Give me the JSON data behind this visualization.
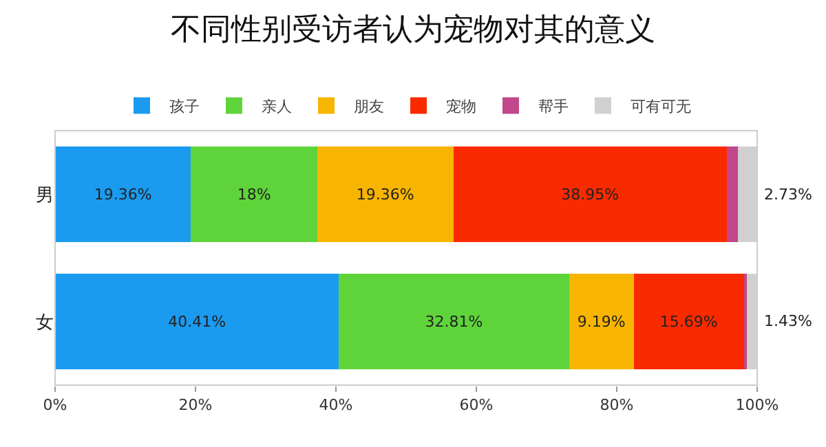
{
  "chart_data": {
    "type": "bar",
    "title": "不同性别受访者认为宠物对其的意义",
    "orientation": "horizontal",
    "stacked": true,
    "categories": [
      "男",
      "女"
    ],
    "series": [
      {
        "name": "孩子",
        "color": "#1a9bf0",
        "values": [
          19.36,
          40.41
        ],
        "value_labels": [
          "19.36%",
          "40.41%"
        ]
      },
      {
        "name": "亲人",
        "color": "#5fd43a",
        "values": [
          18,
          32.81
        ],
        "value_labels": [
          "18%",
          "32.81%"
        ]
      },
      {
        "name": "朋友",
        "color": "#f8b500",
        "values": [
          19.36,
          9.19
        ],
        "value_labels": [
          "19.36%",
          "9.19%"
        ]
      },
      {
        "name": "宠物",
        "color": "#fa2a00",
        "values": [
          38.95,
          15.69
        ],
        "value_labels": [
          "38.95%",
          "15.69%"
        ]
      },
      {
        "name": "帮手",
        "color": "#c0478a",
        "values": [
          1.6,
          0.4
        ],
        "value_labels": [
          null,
          null
        ]
      },
      {
        "name": "可有可无",
        "color": "#d0d0d0",
        "values": [
          2.73,
          1.43
        ],
        "value_labels": [
          "2.73%",
          "1.43%"
        ]
      }
    ],
    "xlim": [
      0,
      100
    ],
    "xticks": [
      {
        "value": 0,
        "label": "0%"
      },
      {
        "value": 20,
        "label": "20%"
      },
      {
        "value": 40,
        "label": "40%"
      },
      {
        "value": 60,
        "label": "60%"
      },
      {
        "value": 80,
        "label": "80%"
      },
      {
        "value": 100,
        "label": "100%"
      }
    ],
    "grid": false,
    "legend": "top"
  }
}
